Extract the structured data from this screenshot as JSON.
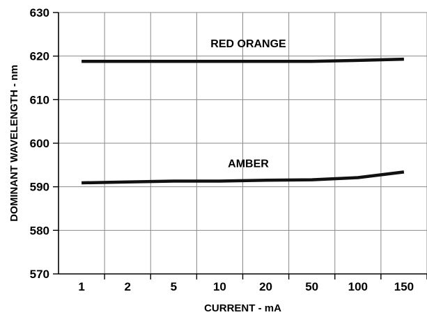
{
  "chart_data": {
    "type": "line",
    "xlabel": "CURRENT - mA",
    "ylabel": "DOMINANT WAVELENGTH - nm",
    "categories": [
      "1",
      "2",
      "5",
      "10",
      "20",
      "50",
      "100",
      "150"
    ],
    "ylim": [
      570,
      630
    ],
    "yticks": [
      570,
      580,
      590,
      600,
      610,
      620,
      630
    ],
    "grid": true,
    "series": [
      {
        "name": "RED ORANGE",
        "values": [
          618.8,
          618.8,
          618.8,
          618.8,
          618.8,
          618.8,
          619.0,
          619.3
        ],
        "color": "#111111"
      },
      {
        "name": "AMBER",
        "values": [
          590.9,
          591.1,
          591.3,
          591.3,
          591.5,
          591.6,
          592.1,
          593.4
        ],
        "color": "#111111"
      }
    ]
  }
}
